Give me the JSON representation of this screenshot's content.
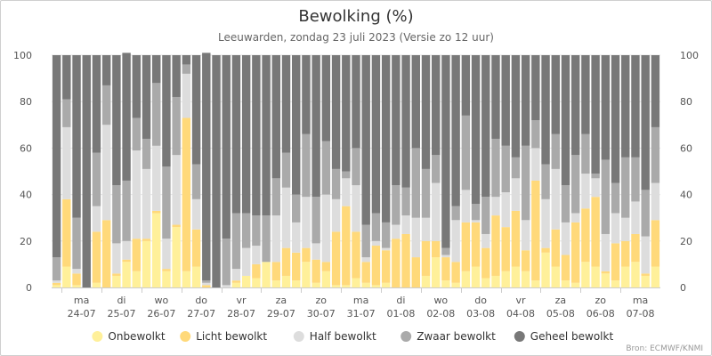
{
  "chart_data": {
    "type": "bar",
    "stacked": true,
    "title": "Bewolking (%)",
    "subtitle": "Leeuwarden, zondag 23 juli 2023 (Versie zo 12 uur)",
    "credit": "Bron: ECMWF/KNMI",
    "ylim": [
      0,
      100
    ],
    "yticks": [
      0,
      20,
      40,
      60,
      80,
      100
    ],
    "grid": true,
    "legend_position": "bottom",
    "day_labels": [
      {
        "day": "ma",
        "date": "24-07"
      },
      {
        "day": "di",
        "date": "25-07"
      },
      {
        "day": "wo",
        "date": "26-07"
      },
      {
        "day": "do",
        "date": "27-07"
      },
      {
        "day": "vr",
        "date": "28-07"
      },
      {
        "day": "za",
        "date": "29-07"
      },
      {
        "day": "zo",
        "date": "30-07"
      },
      {
        "day": "ma",
        "date": "31-07"
      },
      {
        "day": "di",
        "date": "01-08"
      },
      {
        "day": "wo",
        "date": "02-08"
      },
      {
        "day": "do",
        "date": "03-08"
      },
      {
        "day": "vr",
        "date": "04-08"
      },
      {
        "day": "za",
        "date": "05-08"
      },
      {
        "day": "zo",
        "date": "06-08"
      },
      {
        "day": "ma",
        "date": "07-08"
      }
    ],
    "series": [
      {
        "name": "Onbewolkt",
        "color": "#fff09a",
        "values": [
          1,
          9,
          1,
          0,
          2,
          0,
          5,
          11,
          7,
          20,
          32,
          7,
          26,
          7,
          9,
          0,
          0,
          0,
          2,
          5,
          4,
          11,
          3,
          5,
          3,
          11,
          2,
          7,
          1,
          1,
          4,
          2,
          1,
          2,
          0,
          0,
          0,
          5,
          13,
          3,
          2,
          7,
          9,
          4,
          5,
          7,
          9,
          7,
          3,
          15,
          9,
          3,
          2,
          11,
          9,
          6,
          3,
          9,
          11,
          5,
          9
        ]
      },
      {
        "name": "Licht bewolkt",
        "color": "#ffd97a",
        "values": [
          1,
          29,
          5,
          0,
          22,
          29,
          1,
          1,
          14,
          1,
          1,
          1,
          1,
          66,
          16,
          1,
          0,
          0,
          1,
          0,
          6,
          0,
          8,
          12,
          12,
          6,
          10,
          4,
          23,
          34,
          20,
          9,
          17,
          14,
          21,
          23,
          13,
          15,
          7,
          10,
          9,
          21,
          19,
          13,
          26,
          19,
          24,
          9,
          43,
          2,
          16,
          11,
          26,
          23,
          30,
          1,
          16,
          11,
          12,
          1,
          20
        ]
      },
      {
        "name": "Half bewolkt",
        "color": "#dddddd",
        "values": [
          1,
          31,
          2,
          0,
          11,
          41,
          13,
          8,
          38,
          30,
          28,
          13,
          30,
          19,
          13,
          1,
          0,
          1,
          5,
          12,
          8,
          0,
          20,
          26,
          13,
          22,
          7,
          29,
          14,
          12,
          20,
          2,
          2,
          1,
          6,
          8,
          17,
          10,
          25,
          1,
          18,
          14,
          1,
          6,
          8,
          15,
          14,
          13,
          14,
          21,
          26,
          14,
          4,
          15,
          8,
          16,
          13,
          10,
          14,
          16,
          16
        ]
      },
      {
        "name": "Zwaar bewolkt",
        "color": "#aaaaaa",
        "values": [
          10,
          12,
          22,
          0,
          23,
          17,
          25,
          26,
          14,
          13,
          27,
          31,
          25,
          4,
          15,
          1,
          0,
          20,
          24,
          15,
          13,
          20,
          16,
          15,
          12,
          27,
          20,
          23,
          13,
          3,
          16,
          14,
          12,
          11,
          17,
          12,
          30,
          21,
          12,
          3,
          6,
          32,
          7,
          16,
          25,
          20,
          9,
          32,
          12,
          15,
          15,
          16,
          25,
          17,
          2,
          32,
          13,
          26,
          19,
          20,
          24
        ]
      },
      {
        "name": "Geheel bewolkt",
        "color": "#787878",
        "values": [
          87,
          19,
          70,
          100,
          42,
          13,
          56,
          55,
          27,
          36,
          12,
          48,
          18,
          4,
          47,
          98,
          100,
          79,
          68,
          68,
          69,
          69,
          53,
          42,
          60,
          34,
          61,
          37,
          49,
          50,
          40,
          73,
          68,
          72,
          56,
          57,
          40,
          49,
          43,
          83,
          65,
          26,
          64,
          61,
          36,
          39,
          44,
          39,
          28,
          47,
          34,
          56,
          43,
          34,
          51,
          45,
          55,
          44,
          44,
          58,
          31
        ]
      }
    ]
  },
  "legend": {
    "items": [
      {
        "label": "Onbewolkt",
        "color": "#fff09a"
      },
      {
        "label": "Licht bewolkt",
        "color": "#ffd97a"
      },
      {
        "label": "Half bewolkt",
        "color": "#dddddd"
      },
      {
        "label": "Zwaar bewolkt",
        "color": "#aaaaaa"
      },
      {
        "label": "Geheel bewolkt",
        "color": "#787878"
      }
    ]
  }
}
